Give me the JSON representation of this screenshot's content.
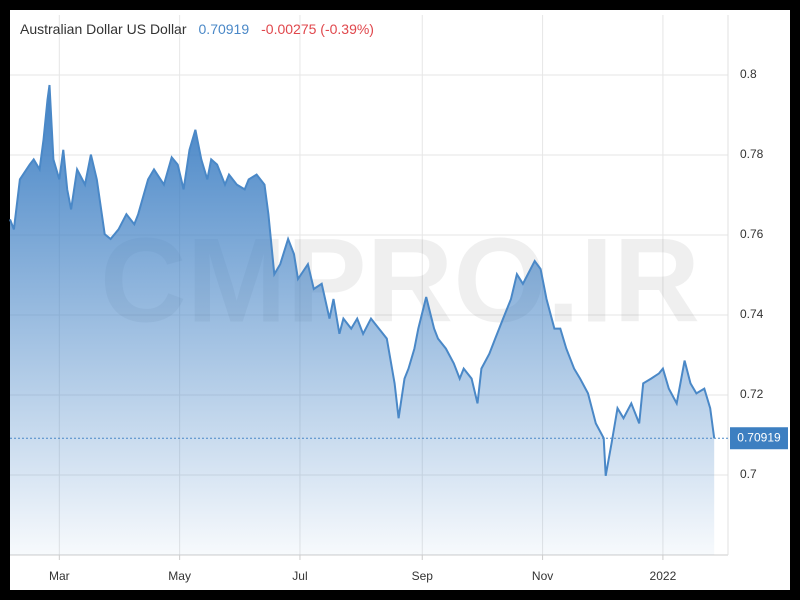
{
  "chart_data": {
    "type": "line",
    "price": 0.70919,
    "change": "-0.00275 (-0.39%)",
    "watermark": "CMPRO.IR",
    "x": [
      34,
      36,
      39,
      44,
      46,
      49,
      51,
      53,
      54,
      56,
      59,
      61,
      63,
      65,
      68,
      72,
      75,
      78,
      82,
      85,
      89,
      93,
      97,
      99,
      104,
      107,
      112,
      116,
      119,
      122,
      125,
      128,
      131,
      134,
      136,
      139,
      143,
      145,
      149,
      153,
      155,
      159,
      163,
      165,
      168,
      171,
      175,
      178,
      180,
      185,
      188,
      192,
      196,
      198,
      201,
      203,
      207,
      210,
      213,
      217,
      221,
      225,
      229,
      231,
      234,
      236,
      239,
      241,
      245,
      249,
      251,
      255,
      259,
      262,
      264,
      268,
      271,
      273,
      277,
      280,
      284,
      288,
      291,
      294,
      300,
      303,
      306,
      310,
      313,
      316,
      320,
      323,
      327,
      331,
      335,
      336,
      339,
      342,
      345,
      349,
      353,
      355,
      359,
      363,
      365,
      368,
      372,
      376,
      379,
      382,
      386,
      389,
      391
    ],
    "series": [
      {
        "name": "Australian Dollar US Dollar",
        "color": "#4a88c7",
        "values": [
          0.7639,
          0.7614,
          0.7739,
          0.7776,
          0.7789,
          0.7764,
          0.7838,
          0.7938,
          0.7975,
          0.7789,
          0.7739,
          0.7813,
          0.7714,
          0.7664,
          0.7764,
          0.7726,
          0.7801,
          0.7739,
          0.7602,
          0.759,
          0.7614,
          0.7652,
          0.7627,
          0.7652,
          0.7739,
          0.7764,
          0.7726,
          0.7794,
          0.7776,
          0.7714,
          0.7813,
          0.7863,
          0.7789,
          0.7739,
          0.7789,
          0.7776,
          0.7726,
          0.7751,
          0.7726,
          0.7714,
          0.7739,
          0.7751,
          0.7726,
          0.7652,
          0.7502,
          0.7527,
          0.759,
          0.7552,
          0.749,
          0.7527,
          0.7465,
          0.7478,
          0.7391,
          0.744,
          0.7353,
          0.7391,
          0.7366,
          0.7391,
          0.7353,
          0.7391,
          0.7366,
          0.7341,
          0.7229,
          0.7142,
          0.7241,
          0.7266,
          0.7316,
          0.7366,
          0.7445,
          0.7366,
          0.7341,
          0.7316,
          0.7279,
          0.7241,
          0.7266,
          0.7241,
          0.7179,
          0.7266,
          0.7303,
          0.7341,
          0.7391,
          0.744,
          0.7502,
          0.7478,
          0.7535,
          0.7515,
          0.744,
          0.7366,
          0.7366,
          0.7316,
          0.7266,
          0.7241,
          0.7204,
          0.7129,
          0.7092,
          0.6998,
          0.708,
          0.7167,
          0.7142,
          0.7179,
          0.7129,
          0.7229,
          0.7241,
          0.7254,
          0.7266,
          0.7216,
          0.7179,
          0.7286,
          0.7229,
          0.7204,
          0.7216,
          0.7167,
          0.70919
        ]
      }
    ],
    "xlim": [
      34,
      398
    ],
    "xticks": [
      {
        "value": 59,
        "label": "Mar"
      },
      {
        "value": 120,
        "label": "May"
      },
      {
        "value": 181,
        "label": "Jul"
      },
      {
        "value": 243,
        "label": "Sep"
      },
      {
        "value": 304,
        "label": "Nov"
      },
      {
        "value": 365,
        "label": "2022"
      }
    ],
    "ylim": [
      0.68,
      0.815
    ],
    "yticks": [
      0.7,
      0.72,
      0.74,
      0.76,
      0.78,
      0.8
    ],
    "grid": true
  }
}
